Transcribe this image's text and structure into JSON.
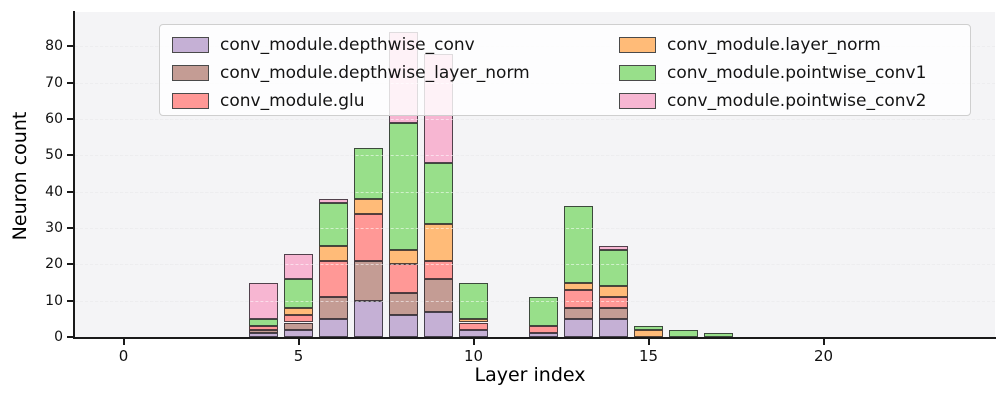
{
  "chart_data": {
    "type": "bar",
    "stacked": true,
    "xlabel": "Layer index",
    "ylabel": "Neuron count",
    "categories": [
      0,
      1,
      2,
      3,
      4,
      5,
      6,
      7,
      8,
      9,
      10,
      11,
      12,
      13,
      14,
      15,
      16,
      17,
      18,
      19,
      20,
      21,
      22,
      23,
      24
    ],
    "series": [
      {
        "name": "conv_module.depthwise_conv",
        "color": "#c5b0d5",
        "values": [
          0,
          0,
          0,
          0,
          1,
          2,
          5,
          10,
          6,
          7,
          2,
          0,
          1,
          5,
          5,
          0,
          0,
          0,
          0,
          0,
          0,
          0,
          0,
          0,
          0
        ]
      },
      {
        "name": "conv_module.depthwise_layer_norm",
        "color": "#c49c94",
        "values": [
          0,
          0,
          0,
          0,
          1,
          2,
          6,
          11,
          6,
          9,
          0,
          0,
          0,
          3,
          3,
          0,
          0,
          0,
          0,
          0,
          0,
          0,
          0,
          0,
          0
        ]
      },
      {
        "name": "conv_module.glu",
        "color": "#ff9896",
        "values": [
          0,
          0,
          0,
          0,
          1,
          2,
          10,
          13,
          8,
          5,
          2,
          0,
          2,
          5,
          3,
          0,
          0,
          0,
          0,
          0,
          0,
          0,
          0,
          0,
          0
        ]
      },
      {
        "name": "conv_module.layer_norm",
        "color": "#ffbb78",
        "values": [
          0,
          0,
          0,
          0,
          0,
          2,
          4,
          4,
          4,
          10,
          1,
          0,
          0,
          2,
          3,
          2,
          0,
          0,
          0,
          0,
          0,
          0,
          0,
          0,
          0
        ]
      },
      {
        "name": "conv_module.pointwise_conv1",
        "color": "#98df8a",
        "values": [
          0,
          0,
          0,
          0,
          2,
          8,
          12,
          14,
          35,
          17,
          10,
          0,
          8,
          21,
          10,
          1,
          2,
          1,
          0,
          0,
          0,
          0,
          0,
          0,
          0
        ]
      },
      {
        "name": "conv_module.pointwise_conv2",
        "color": "#f7b6d2",
        "values": [
          0,
          0,
          0,
          0,
          10,
          7,
          1,
          0,
          25,
          30,
          0,
          0,
          0,
          0,
          1,
          0,
          0,
          0,
          0,
          0,
          0,
          0,
          0,
          0,
          0
        ]
      }
    ],
    "bar_totals": {
      "4": 15,
      "5": 23,
      "6": 38,
      "7": 52,
      "8": 84,
      "9": 78,
      "10": 15,
      "12": 11,
      "13": 36,
      "14": 25,
      "15": 3,
      "16": 2,
      "17": 1
    },
    "xticks": [
      0,
      5,
      10,
      15,
      20
    ],
    "yticks": [
      0,
      10,
      20,
      30,
      40,
      50,
      60,
      70,
      80
    ],
    "ylim": [
      0,
      89.5
    ],
    "xlim": [
      -1.45,
      24.9
    ],
    "grid": "horizontal dashed",
    "legend_position": "upper center, 2 columns",
    "legend_columns": [
      [
        0,
        1,
        2
      ],
      [
        3,
        4,
        5
      ]
    ],
    "plot_background": "#f4f4f6",
    "figure_background": "#ffffff"
  }
}
